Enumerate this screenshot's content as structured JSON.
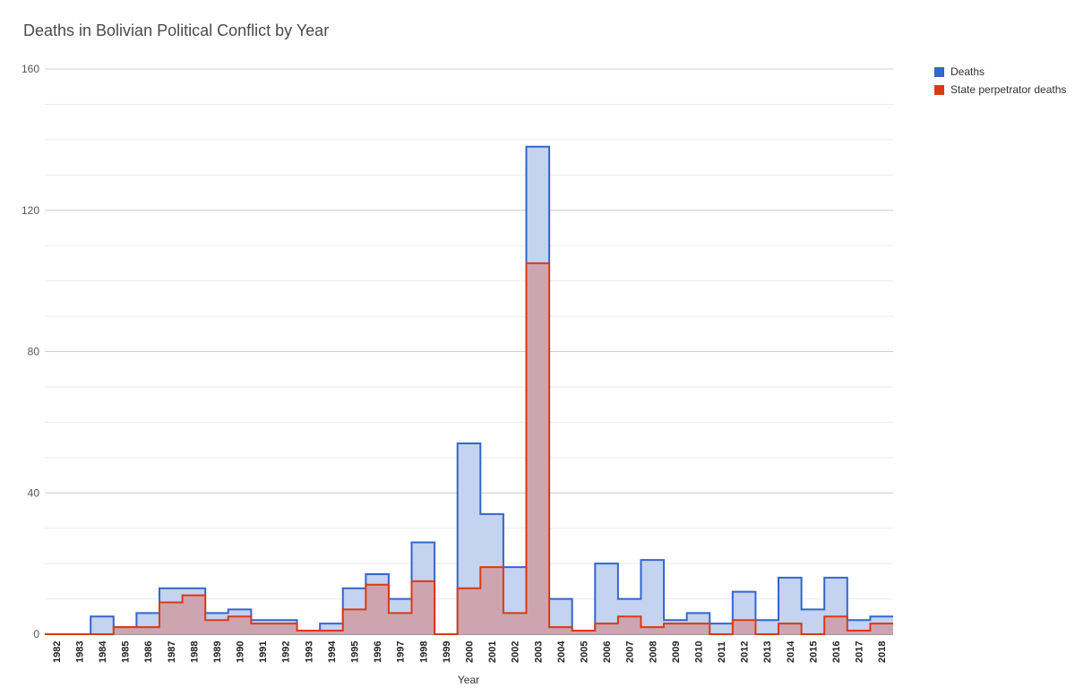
{
  "chart_data": {
    "type": "area",
    "title": "Deaths in Bolivian Political Conflict by Year",
    "xlabel": "Year",
    "ylabel": "",
    "ylim": [
      0,
      160
    ],
    "yticks": [
      "0",
      "40",
      "80",
      "120",
      "160"
    ],
    "categories": [
      "1982",
      "1983",
      "1984",
      "1985",
      "1986",
      "1987",
      "1988",
      "1989",
      "1990",
      "1991",
      "1992",
      "1993",
      "1994",
      "1995",
      "1996",
      "1997",
      "1998",
      "1999",
      "2000",
      "2001",
      "2002",
      "2003",
      "2004",
      "2005",
      "2006",
      "2007",
      "2008",
      "2009",
      "2010",
      "2011",
      "2012",
      "2013",
      "2014",
      "2015",
      "2016",
      "2017",
      "2018"
    ],
    "series": [
      {
        "name": "Deaths",
        "color": "#3366cc",
        "fill": "#c3d3f0",
        "values": [
          0,
          0,
          5,
          2,
          6,
          13,
          13,
          6,
          7,
          4,
          4,
          1,
          3,
          13,
          17,
          10,
          26,
          0,
          54,
          34,
          19,
          138,
          10,
          1,
          20,
          10,
          21,
          4,
          6,
          3,
          12,
          4,
          16,
          7,
          16,
          4,
          5
        ]
      },
      {
        "name": "State perpetrator deaths",
        "color": "#dc3912",
        "fill": "#cf9ca6",
        "values": [
          0,
          0,
          0,
          2,
          2,
          9,
          11,
          4,
          5,
          3,
          3,
          1,
          1,
          7,
          14,
          6,
          15,
          0,
          13,
          19,
          6,
          105,
          2,
          1,
          3,
          5,
          2,
          3,
          3,
          0,
          4,
          0,
          3,
          0,
          5,
          1,
          3
        ]
      }
    ]
  }
}
